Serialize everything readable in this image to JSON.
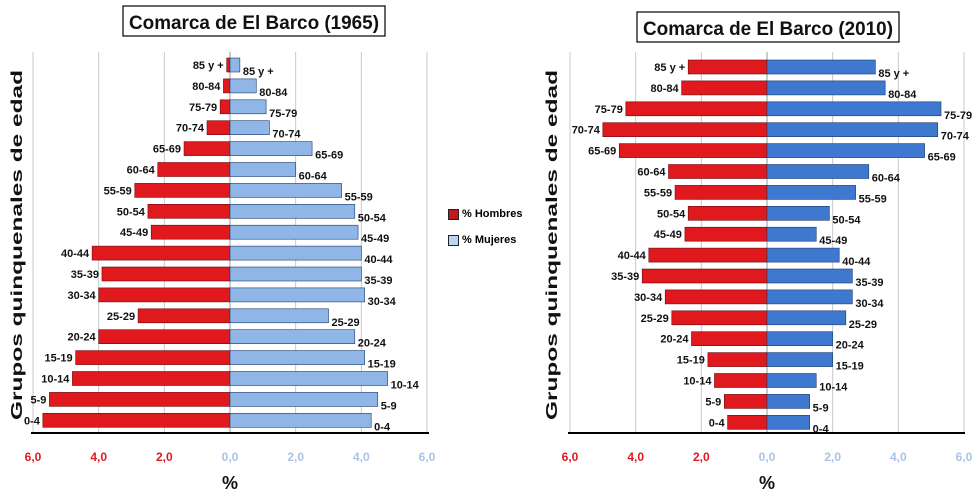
{
  "legend": {
    "hombres": "% Hombres",
    "mujeres": "% Mujeres"
  },
  "colors": {
    "hombres": "#e0191f",
    "mujeres_1965": "#8fb6e6",
    "mujeres_2010": "#3f79cf",
    "tick_left": "#e0191f",
    "tick_right": "#a9c3e8",
    "grid": "#c8c8c8"
  },
  "chart_data": [
    {
      "type": "bar",
      "title": "Comarca de El Barco (1965)",
      "ylabel": "Grupos quinquenales de edad",
      "xlabel": "%",
      "xlim": [
        -6,
        6
      ],
      "xticks_left": [
        "6,0",
        "4,0",
        "2,0"
      ],
      "xticks_right": [
        "0,0",
        "2,0",
        "4,0",
        "6,0"
      ],
      "categories": [
        "85 y +",
        "80-84",
        "75-79",
        "70-74",
        "65-69",
        "60-64",
        "55-59",
        "50-54",
        "45-49",
        "40-44",
        "35-39",
        "30-34",
        "25-29",
        "20-24",
        "15-19",
        "10-14",
        "5-9",
        "0-4"
      ],
      "series": [
        {
          "name": "% Hombres",
          "values": [
            0.1,
            0.2,
            0.3,
            0.7,
            1.4,
            2.2,
            2.9,
            2.5,
            2.4,
            4.2,
            3.9,
            4.0,
            2.8,
            4.0,
            4.7,
            4.8,
            5.5,
            5.7
          ]
        },
        {
          "name": "% Mujeres",
          "values": [
            0.3,
            0.8,
            1.1,
            1.2,
            2.5,
            2.0,
            3.4,
            3.8,
            3.9,
            4.0,
            4.0,
            4.1,
            3.0,
            3.8,
            4.1,
            4.8,
            4.5,
            4.3
          ]
        }
      ]
    },
    {
      "type": "bar",
      "title": "Comarca de El Barco (2010)",
      "ylabel": "Grupos quinquenales de edad",
      "xlabel": "%",
      "xlim": [
        -6,
        6
      ],
      "xticks_left": [
        "6,0",
        "4,0",
        "2,0"
      ],
      "xticks_right": [
        "0,0",
        "2,0",
        "4,0",
        "6,0"
      ],
      "categories": [
        "85 y +",
        "80-84",
        "75-79",
        "70-74",
        "65-69",
        "60-64",
        "55-59",
        "50-54",
        "45-49",
        "40-44",
        "35-39",
        "30-34",
        "25-29",
        "20-24",
        "15-19",
        "10-14",
        "5-9",
        "0-4"
      ],
      "series": [
        {
          "name": "% Hombres",
          "values": [
            2.4,
            2.6,
            4.3,
            5.0,
            4.5,
            3.0,
            2.8,
            2.4,
            2.5,
            3.6,
            3.8,
            3.1,
            2.9,
            2.3,
            1.8,
            1.6,
            1.3,
            1.2
          ]
        },
        {
          "name": "% Mujeres",
          "values": [
            3.3,
            3.6,
            5.3,
            5.2,
            4.8,
            3.1,
            2.7,
            1.9,
            1.5,
            2.2,
            2.6,
            2.6,
            2.4,
            2.0,
            2.0,
            1.5,
            1.3,
            1.3
          ]
        }
      ]
    }
  ]
}
